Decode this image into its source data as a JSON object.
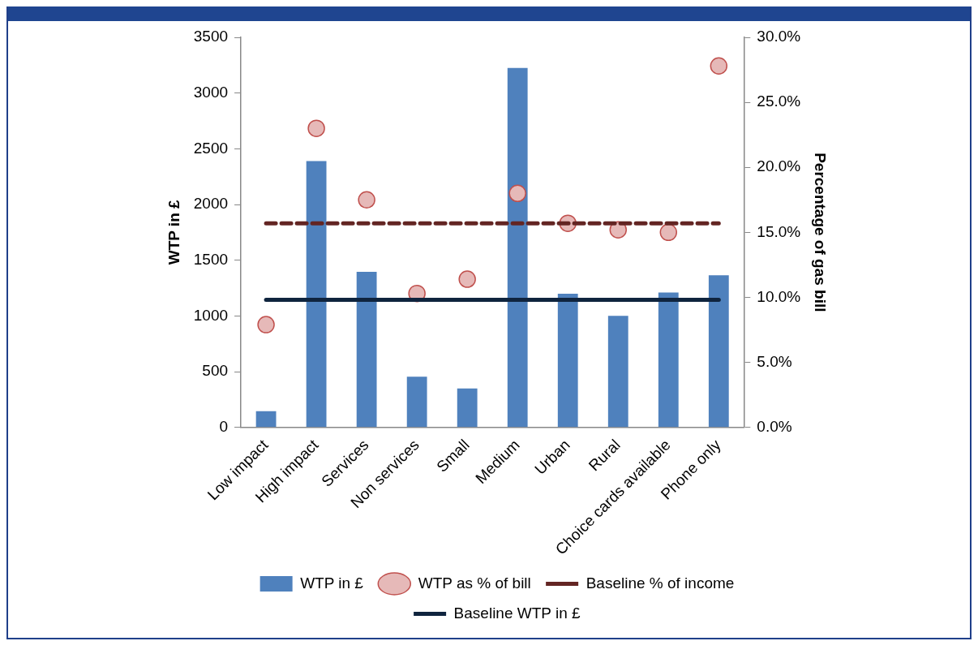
{
  "chart_data": {
    "type": "bar",
    "categories": [
      "Low impact",
      "High impact",
      "Services",
      "Non services",
      "Small",
      "Medium",
      "Urban",
      "Rural",
      "Choice cards available",
      "Phone only"
    ],
    "series": [
      {
        "name": "WTP in £",
        "color": "#4f81bd",
        "values": [
          145,
          2390,
          1395,
          455,
          350,
          3225,
          1200,
          1000,
          1210,
          1365
        ]
      },
      {
        "name": "WTP as % of bill",
        "type": "scatter",
        "axis": "y2",
        "color": "#e6b9b8",
        "marker": "circle",
        "values": [
          7.9,
          23.0,
          17.5,
          10.3,
          11.4,
          18.0,
          15.7,
          15.2,
          15.0,
          27.8
        ]
      },
      {
        "name": "Baseline % of income",
        "type": "line",
        "axis": "y2",
        "color": "#632523",
        "line_style": "dashed",
        "marker": "none",
        "values": [
          15.7,
          15.7,
          15.7,
          15.7,
          15.7,
          15.7,
          15.7,
          15.7,
          15.7,
          15.7
        ]
      },
      {
        "name": "Baseline WTP in £",
        "type": "line",
        "color": "#0f243e",
        "line_style": "solid",
        "marker": "none",
        "values": [
          1145,
          1145,
          1145,
          1145,
          1145,
          1145,
          1145,
          1145,
          1145,
          1145
        ]
      }
    ],
    "ylabel": "WTP in £",
    "y2label": "Percentage of gas bill",
    "ylim": [
      0,
      3500
    ],
    "yticks": [
      0,
      500,
      1000,
      1500,
      2000,
      2500,
      3000,
      3500
    ],
    "y2lim": [
      0,
      30
    ],
    "y2ticks": [
      {
        "value": 0,
        "label": "0.0%"
      },
      {
        "value": 5,
        "label": "5.0%"
      },
      {
        "value": 10,
        "label": "10.0%"
      },
      {
        "value": 15,
        "label": "15.0%"
      },
      {
        "value": 20,
        "label": "20.0%"
      },
      {
        "value": 25,
        "label": "25.0%"
      },
      {
        "value": 30,
        "label": "30.0%"
      }
    ],
    "grid": false,
    "legend": "bottom"
  }
}
